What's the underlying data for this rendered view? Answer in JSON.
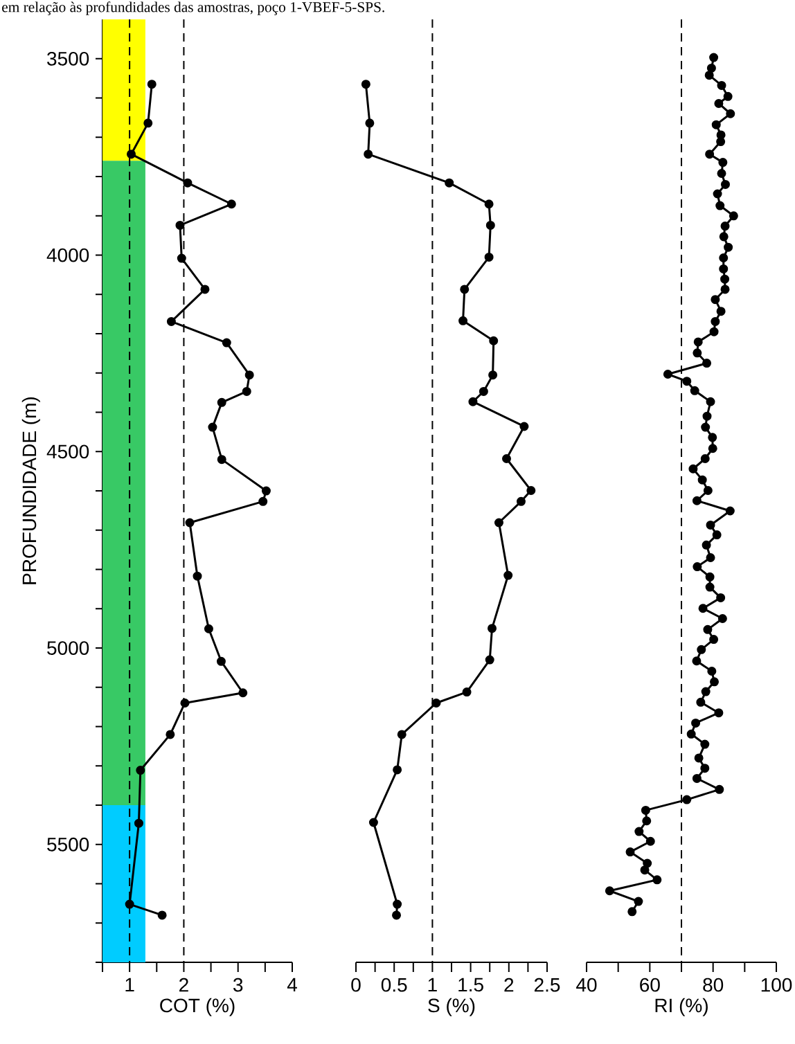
{
  "chart_data": [
    {
      "type": "line",
      "marker": "circle",
      "line_style": "solid",
      "annotations": [
        "em relação às profundidades das amostras, poço 1-VBEF-5-SPS."
      ],
      "xlabel": "COT (%)",
      "ylabel": "PROFUNDIDADE (m)",
      "xlim": [
        0.5,
        4
      ],
      "ylim": [
        5800,
        3400
      ],
      "xticks": [
        {
          "value": 0.5,
          "label": null
        },
        1,
        {
          "value": 1.5,
          "label": null
        },
        2,
        {
          "value": 2.5,
          "label": null
        },
        3,
        {
          "value": 3.5,
          "label": null
        },
        4
      ],
      "yticks": [
        3500,
        {
          "value": 3600,
          "label": null
        },
        {
          "value": 3700,
          "label": null
        },
        {
          "value": 3800,
          "label": null
        },
        {
          "value": 3900,
          "label": null
        },
        4000,
        {
          "value": 4100,
          "label": null
        },
        {
          "value": 4200,
          "label": null
        },
        {
          "value": 4300,
          "label": null
        },
        {
          "value": 4400,
          "label": null
        },
        4500,
        {
          "value": 4600,
          "label": null
        },
        {
          "value": 4700,
          "label": null
        },
        {
          "value": 4800,
          "label": null
        },
        {
          "value": 4900,
          "label": null
        },
        5000,
        {
          "value": 5100,
          "label": null
        },
        {
          "value": 5200,
          "label": null
        },
        {
          "value": 5300,
          "label": null
        },
        {
          "value": 5400,
          "label": null
        },
        5500,
        {
          "value": 5600,
          "label": null
        },
        {
          "value": 5700,
          "label": null
        },
        {
          "value": 5800,
          "label": null
        }
      ],
      "bands": [
        {
          "axis": "y",
          "from": 3400,
          "to": 3760,
          "color": "#ffff00"
        },
        {
          "axis": "y",
          "from": 3760,
          "to": 5400,
          "color": "#38c965"
        },
        {
          "axis": "y",
          "from": 5400,
          "to": 5800,
          "color": "#00ccff"
        }
      ],
      "ref_lines": [
        {
          "axis": "x",
          "value": 1,
          "color": "#000000",
          "line_style": "dashed"
        },
        {
          "axis": "x",
          "value": 2,
          "color": "#000000",
          "line_style": "dashed"
        }
      ],
      "series": [
        {
          "color": "#000000",
          "x": [
            1.41,
            1.34,
            1.03,
            2.07,
            2.88,
            1.93,
            1.96,
            2.39,
            1.77,
            2.79,
            3.21,
            3.16,
            2.7,
            2.53,
            2.7,
            3.52,
            3.46,
            2.11,
            2.25,
            2.46,
            2.69,
            3.09,
            2.02,
            1.75,
            1.2,
            1.17,
            1.0,
            1.6
          ],
          "values": [
            3565,
            3664,
            3743,
            3816,
            3870,
            3924,
            4008,
            4087,
            4169,
            4223,
            4305,
            4347,
            4375,
            4438,
            4520,
            4600,
            4627,
            4681,
            4817,
            4951,
            5034,
            5114,
            5140,
            5220,
            5311,
            5446,
            5652,
            5680
          ]
        }
      ]
    },
    {
      "type": "line",
      "marker": "circle",
      "line_style": "solid",
      "xlabel": "S (%)",
      "xlim": [
        0,
        2.5
      ],
      "ylim": [
        5800,
        3400
      ],
      "tick_labels": "x",
      "xticks": [
        0,
        {
          "value": 0.25,
          "label": null
        },
        0.5,
        {
          "value": 0.75,
          "label": null
        },
        1,
        {
          "value": 1.25,
          "label": null
        },
        1.5,
        {
          "value": 1.75,
          "label": null
        },
        2,
        {
          "value": 2.25,
          "label": null
        },
        2.5
      ],
      "ref_lines": [
        {
          "axis": "x",
          "value": 1,
          "color": "#000000",
          "line_style": "dashed"
        }
      ],
      "series": [
        {
          "color": "#000000",
          "x": [
            0.13,
            0.18,
            0.16,
            1.22,
            1.74,
            1.76,
            1.74,
            1.42,
            1.4,
            1.8,
            1.79,
            1.67,
            1.53,
            2.2,
            1.97,
            2.29,
            2.16,
            1.87,
            1.99,
            1.78,
            1.75,
            1.45,
            1.05,
            0.6,
            0.54,
            0.23,
            0.54,
            0.53
          ],
          "values": [
            3565,
            3664,
            3743,
            3816,
            3870,
            3924,
            4005,
            4087,
            4167,
            4218,
            4305,
            4347,
            4373,
            4436,
            4518,
            4599,
            4627,
            4681,
            4815,
            4950,
            5030,
            5112,
            5140,
            5220,
            5310,
            5444,
            5652,
            5680
          ]
        }
      ]
    },
    {
      "type": "line",
      "marker": "circle",
      "line_style": "solid",
      "xlabel": "RI (%)",
      "xlim": [
        40,
        100
      ],
      "ylim": [
        5800,
        3400
      ],
      "tick_labels": "x",
      "xticks": [
        40,
        {
          "value": 50,
          "label": null
        },
        60,
        {
          "value": 70,
          "label": null
        },
        80,
        {
          "value": 90,
          "label": null
        },
        100
      ],
      "ref_lines": [
        {
          "axis": "x",
          "value": 70,
          "color": "#000000",
          "line_style": "dashed"
        }
      ],
      "series": [
        {
          "color": "#000000",
          "x": [
            80.2,
            79.5,
            78.8,
            82.7,
            84.7,
            81.8,
            85.5,
            81.0,
            82.5,
            82.4,
            78.9,
            83.1,
            82.7,
            83.9,
            81.4,
            82.2,
            86.5,
            83.8,
            83.4,
            84.8,
            83.3,
            83.3,
            83.7,
            83.8,
            80.7,
            82.5,
            80.7,
            80.3,
            75.3,
            75.0,
            78.0,
            65.7,
            71.7,
            74.2,
            79.2,
            78.1,
            77.6,
            79.8,
            79.9,
            77.5,
            73.7,
            76.6,
            78.4,
            74.9,
            85.4,
            79.2,
            81.2,
            77.9,
            79.2,
            75.0,
            79.0,
            79.0,
            82.4,
            76.8,
            83.0,
            78.3,
            80.2,
            76.3,
            74.8,
            79.6,
            80.4,
            77.7,
            76.1,
            81.8,
            74.5,
            73.1,
            77.4,
            75.5,
            77.4,
            74.9,
            82.0,
            71.7,
            58.7,
            59.0,
            56.6,
            60.2,
            53.8,
            59.2,
            58.4,
            62.3,
            47.3,
            56.4,
            54.4
          ],
          "values": [
            3497,
            3524,
            3542,
            3568,
            3596,
            3614,
            3640,
            3668,
            3694,
            3711,
            3743,
            3764,
            3792,
            3820,
            3844,
            3874,
            3900,
            3926,
            3953,
            3980,
            4007,
            4035,
            4061,
            4087,
            4113,
            4143,
            4169,
            4195,
            4221,
            4249,
            4275,
            4303,
            4321,
            4345,
            4373,
            4410,
            4438,
            4464,
            4492,
            4518,
            4544,
            4572,
            4599,
            4625,
            4651,
            4687,
            4712,
            4738,
            4770,
            4793,
            4819,
            4845,
            4872,
            4899,
            4925,
            4953,
            4978,
            5004,
            5033,
            5059,
            5086,
            5111,
            5138,
            5165,
            5191,
            5219,
            5245,
            5280,
            5306,
            5332,
            5360,
            5386,
            5413,
            5440,
            5467,
            5492,
            5519,
            5548,
            5565,
            5590,
            5618,
            5645,
            5671
          ]
        }
      ]
    }
  ]
}
